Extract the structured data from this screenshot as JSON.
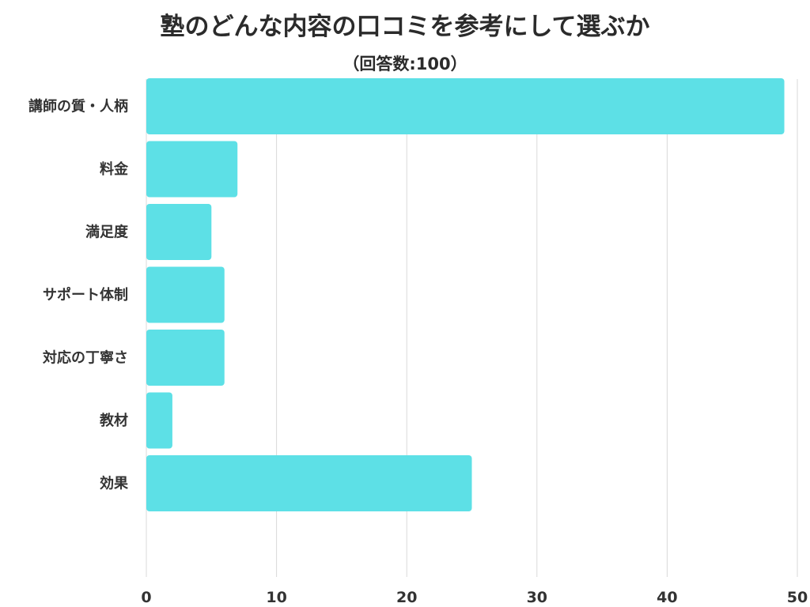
{
  "chart_data": {
    "type": "bar",
    "orientation": "horizontal",
    "title": "塾のどんな内容の口コミを参考にして選ぶか",
    "subtitle": "（回答数:100）",
    "categories": [
      "講師の質・人柄",
      "料金",
      "満足度",
      "サポート体制",
      "対応の丁寧さ",
      "教材",
      "効果"
    ],
    "values": [
      49,
      7,
      5,
      6,
      6,
      2,
      25
    ],
    "xlim": [
      0,
      50
    ],
    "xticks": [
      "0",
      "10",
      "20",
      "30",
      "40",
      "50"
    ],
    "grid": true,
    "bar_color": "#5de0e6",
    "grid_color": "#d9d9d9"
  }
}
